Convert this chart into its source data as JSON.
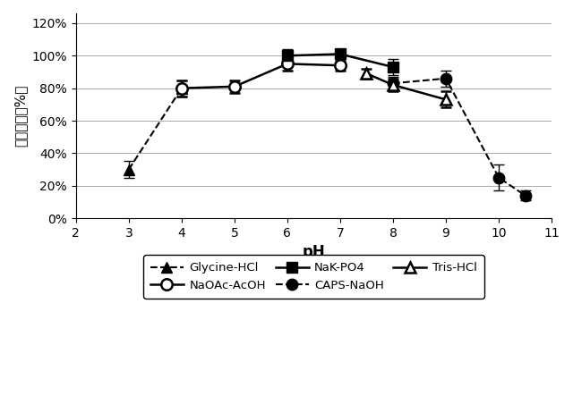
{
  "xlabel": "pH",
  "ylabel": "相対活性（%）",
  "xlim": [
    2,
    11
  ],
  "ylim": [
    0,
    1.26
  ],
  "yticks": [
    0,
    0.2,
    0.4,
    0.6,
    0.8,
    1.0,
    1.2
  ],
  "ytick_labels": [
    "0%",
    "20%",
    "40%",
    "60%",
    "80%",
    "100%",
    "120%"
  ],
  "xticks": [
    2,
    3,
    4,
    5,
    6,
    7,
    8,
    9,
    10,
    11
  ],
  "glycine_hcl": {
    "x": [
      3,
      4
    ],
    "y": [
      0.3,
      0.8
    ],
    "yerr": [
      0.05,
      0.05
    ],
    "label": "Glycine-HCl"
  },
  "naoac_acoh": {
    "x": [
      4,
      5,
      6,
      7
    ],
    "y": [
      0.8,
      0.81,
      0.95,
      0.94
    ],
    "yerr": [
      0.05,
      0.04,
      0.04,
      0.03
    ],
    "label": "NaOAc-AcOH"
  },
  "nak_po4": {
    "x": [
      6,
      7,
      8
    ],
    "y": [
      1.0,
      1.01,
      0.93
    ],
    "yerr": [
      0.04,
      0.03,
      0.05
    ],
    "label": "NaK-PO4"
  },
  "caps_naoh": {
    "x": [
      8,
      9,
      10,
      10.5
    ],
    "y": [
      0.83,
      0.86,
      0.25,
      0.14
    ],
    "yerr": [
      0.04,
      0.05,
      0.08,
      0.03
    ],
    "label": "CAPS-NaOH"
  },
  "tris_hcl": {
    "x": [
      7.5,
      8,
      9
    ],
    "y": [
      0.89,
      0.82,
      0.73
    ],
    "yerr": [
      0.03,
      0.04,
      0.05
    ],
    "label": "Tris-HCl"
  }
}
